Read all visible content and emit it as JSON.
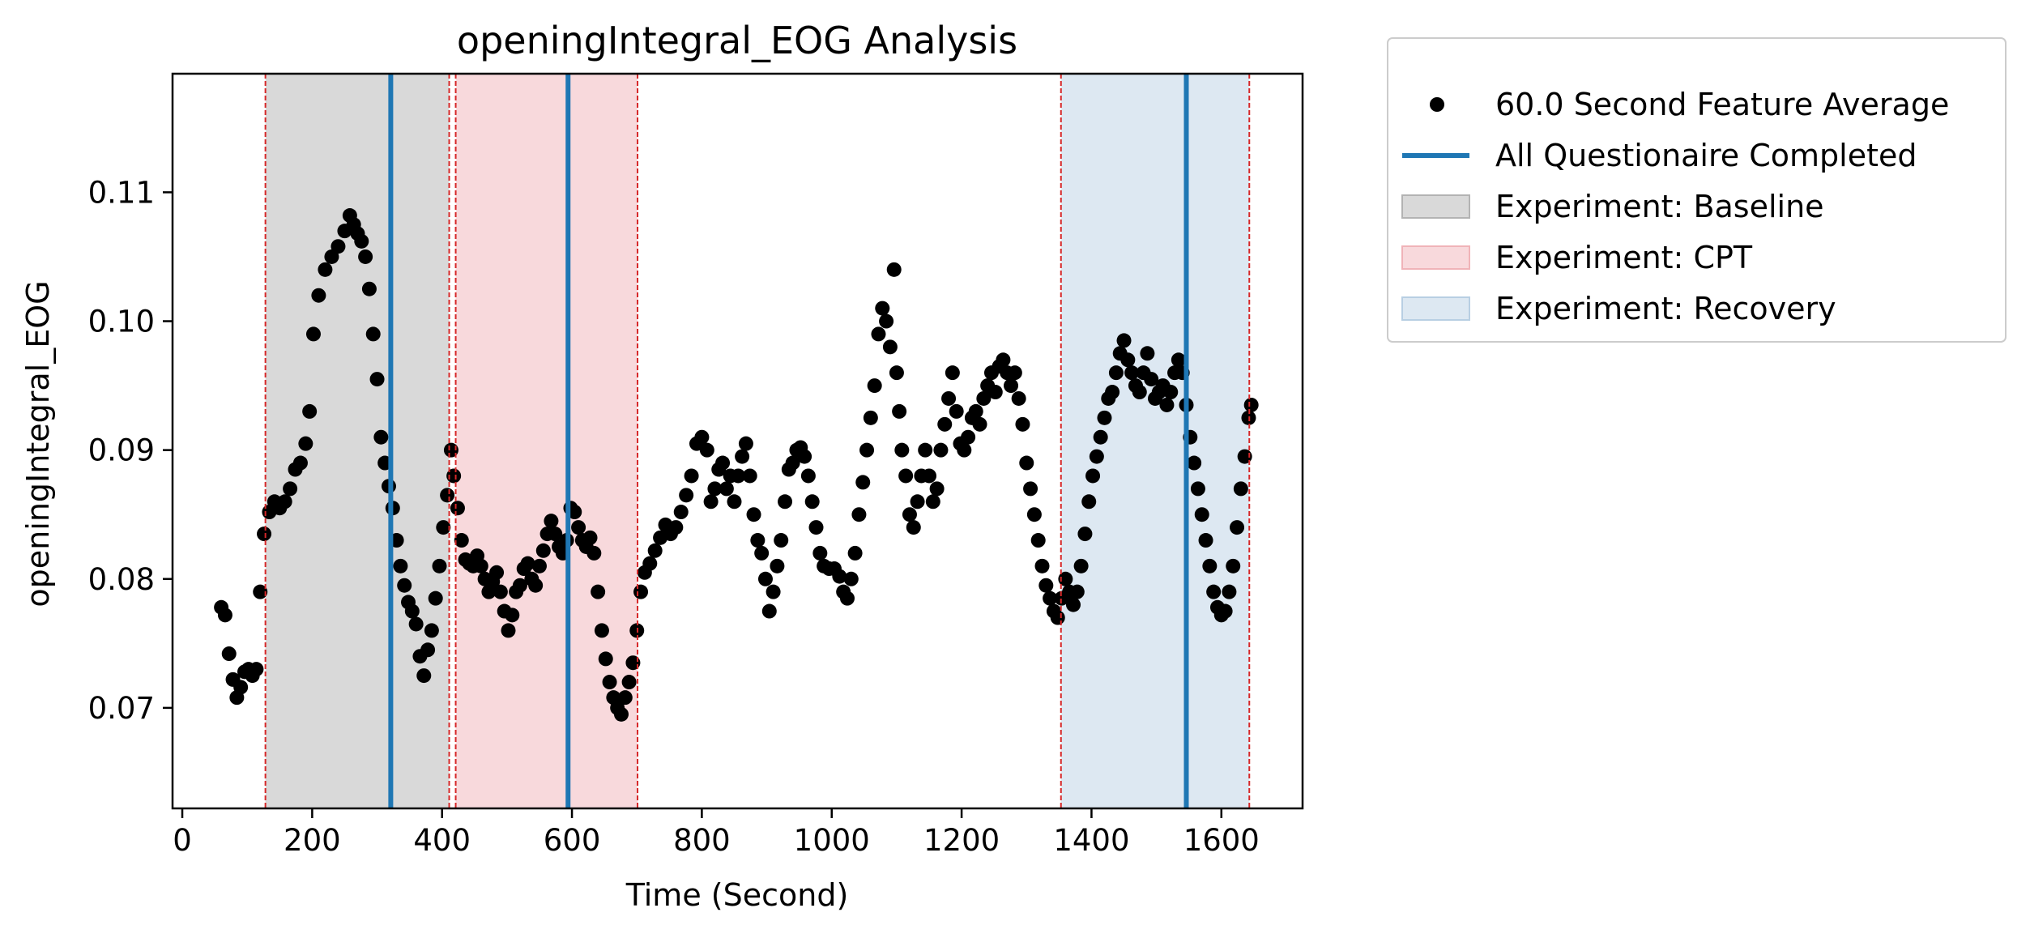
{
  "chart_data": {
    "type": "scatter",
    "title": "openingIntegral_EOG Analysis",
    "xlabel": "Time (Second)",
    "ylabel": "openingIntegral_EOG",
    "xlim": [
      -15,
      1725
    ],
    "ylim": [
      0.0622,
      0.1192
    ],
    "xticks": [
      0,
      200,
      400,
      600,
      800,
      1000,
      1200,
      1400,
      1600
    ],
    "yticks": [
      0.07,
      0.08,
      0.09,
      0.1,
      0.11
    ],
    "xtick_labels": [
      "0",
      "200",
      "400",
      "600",
      "800",
      "1000",
      "1200",
      "1400",
      "1600"
    ],
    "ytick_labels": [
      "0.07",
      "0.08",
      "0.09",
      "0.10",
      "0.11"
    ],
    "grid": false,
    "legend": {
      "placement": "outside-right-top",
      "entries": [
        {
          "label": "60.0 Second Feature Average",
          "kind": "marker",
          "color": "#000000"
        },
        {
          "label": "All Questionaire Completed",
          "kind": "line",
          "color": "#1f77b4"
        },
        {
          "label": "Experiment: Baseline",
          "kind": "patch",
          "color": "#d9d9d9",
          "edge": "#b3b3b3"
        },
        {
          "label": "Experiment: CPT",
          "kind": "patch",
          "color": "#f8d9dc",
          "edge": "#f0b3b8"
        },
        {
          "label": "Experiment: Recovery",
          "kind": "patch",
          "color": "#dde8f2",
          "edge": "#b8cfe3"
        }
      ]
    },
    "spans": [
      {
        "name": "Experiment: Baseline",
        "x0": 128,
        "x1": 411,
        "color": "#d9d9d9"
      },
      {
        "name": "Experiment: CPT",
        "x0": 421,
        "x1": 701,
        "color": "#f8d9dc"
      },
      {
        "name": "Experiment: Recovery",
        "x0": 1353,
        "x1": 1643,
        "color": "#dde8f2"
      }
    ],
    "span_boundaries": [
      128,
      411,
      421,
      701,
      1353,
      1643
    ],
    "boundary_color": "#d62728",
    "questionnaire_lines": [
      321,
      594,
      1546
    ],
    "questionnaire_color": "#1f77b4",
    "series": [
      {
        "name": "60.0 Second Feature Average",
        "color": "#000000",
        "points": [
          [
            60,
            0.0778
          ],
          [
            66,
            0.0772
          ],
          [
            72,
            0.0742
          ],
          [
            78,
            0.0722
          ],
          [
            84,
            0.0708
          ],
          [
            90,
            0.0716
          ],
          [
            96,
            0.0728
          ],
          [
            102,
            0.073
          ],
          [
            108,
            0.0725
          ],
          [
            114,
            0.073
          ],
          [
            120,
            0.079
          ],
          [
            126,
            0.0835
          ],
          [
            134,
            0.0852
          ],
          [
            142,
            0.086
          ],
          [
            150,
            0.0855
          ],
          [
            158,
            0.086
          ],
          [
            166,
            0.087
          ],
          [
            174,
            0.0885
          ],
          [
            182,
            0.089
          ],
          [
            190,
            0.0905
          ],
          [
            196,
            0.093
          ],
          [
            202,
            0.099
          ],
          [
            210,
            0.102
          ],
          [
            220,
            0.104
          ],
          [
            230,
            0.105
          ],
          [
            240,
            0.1058
          ],
          [
            250,
            0.107
          ],
          [
            258,
            0.1082
          ],
          [
            264,
            0.1075
          ],
          [
            270,
            0.1068
          ],
          [
            276,
            0.1062
          ],
          [
            282,
            0.105
          ],
          [
            288,
            0.1025
          ],
          [
            294,
            0.099
          ],
          [
            300,
            0.0955
          ],
          [
            306,
            0.091
          ],
          [
            312,
            0.089
          ],
          [
            318,
            0.0872
          ],
          [
            324,
            0.0855
          ],
          [
            330,
            0.083
          ],
          [
            336,
            0.081
          ],
          [
            342,
            0.0795
          ],
          [
            348,
            0.0782
          ],
          [
            354,
            0.0775
          ],
          [
            360,
            0.0765
          ],
          [
            366,
            0.074
          ],
          [
            372,
            0.0725
          ],
          [
            378,
            0.0745
          ],
          [
            384,
            0.076
          ],
          [
            390,
            0.0785
          ],
          [
            396,
            0.081
          ],
          [
            402,
            0.084
          ],
          [
            408,
            0.0865
          ],
          [
            414,
            0.09
          ],
          [
            418,
            0.088
          ],
          [
            424,
            0.0855
          ],
          [
            430,
            0.083
          ],
          [
            436,
            0.0815
          ],
          [
            442,
            0.0812
          ],
          [
            448,
            0.081
          ],
          [
            454,
            0.0818
          ],
          [
            460,
            0.081
          ],
          [
            466,
            0.08
          ],
          [
            472,
            0.079
          ],
          [
            478,
            0.0798
          ],
          [
            484,
            0.0805
          ],
          [
            490,
            0.079
          ],
          [
            496,
            0.0775
          ],
          [
            502,
            0.076
          ],
          [
            508,
            0.0772
          ],
          [
            514,
            0.079
          ],
          [
            520,
            0.0795
          ],
          [
            526,
            0.0808
          ],
          [
            532,
            0.0812
          ],
          [
            538,
            0.08
          ],
          [
            544,
            0.0795
          ],
          [
            550,
            0.081
          ],
          [
            556,
            0.0822
          ],
          [
            562,
            0.0835
          ],
          [
            568,
            0.0845
          ],
          [
            574,
            0.0835
          ],
          [
            580,
            0.0825
          ],
          [
            586,
            0.082
          ],
          [
            592,
            0.083
          ],
          [
            598,
            0.0855
          ],
          [
            604,
            0.0852
          ],
          [
            610,
            0.084
          ],
          [
            616,
            0.083
          ],
          [
            622,
            0.0825
          ],
          [
            628,
            0.0832
          ],
          [
            634,
            0.082
          ],
          [
            640,
            0.079
          ],
          [
            646,
            0.076
          ],
          [
            652,
            0.0738
          ],
          [
            658,
            0.072
          ],
          [
            664,
            0.0708
          ],
          [
            670,
            0.07
          ],
          [
            676,
            0.0695
          ],
          [
            682,
            0.0708
          ],
          [
            688,
            0.072
          ],
          [
            694,
            0.0735
          ],
          [
            700,
            0.076
          ],
          [
            706,
            0.079
          ],
          [
            712,
            0.0805
          ],
          [
            720,
            0.0812
          ],
          [
            728,
            0.0822
          ],
          [
            736,
            0.0832
          ],
          [
            744,
            0.0842
          ],
          [
            752,
            0.0835
          ],
          [
            760,
            0.084
          ],
          [
            768,
            0.0852
          ],
          [
            776,
            0.0865
          ],
          [
            784,
            0.088
          ],
          [
            792,
            0.0905
          ],
          [
            800,
            0.091
          ],
          [
            808,
            0.09
          ],
          [
            814,
            0.086
          ],
          [
            820,
            0.087
          ],
          [
            826,
            0.0885
          ],
          [
            832,
            0.089
          ],
          [
            838,
            0.087
          ],
          [
            844,
            0.088
          ],
          [
            850,
            0.086
          ],
          [
            856,
            0.088
          ],
          [
            862,
            0.0895
          ],
          [
            868,
            0.0905
          ],
          [
            874,
            0.088
          ],
          [
            880,
            0.085
          ],
          [
            886,
            0.083
          ],
          [
            892,
            0.082
          ],
          [
            898,
            0.08
          ],
          [
            904,
            0.0775
          ],
          [
            910,
            0.079
          ],
          [
            916,
            0.081
          ],
          [
            922,
            0.083
          ],
          [
            928,
            0.086
          ],
          [
            934,
            0.0885
          ],
          [
            940,
            0.089
          ],
          [
            946,
            0.09
          ],
          [
            952,
            0.0902
          ],
          [
            958,
            0.0895
          ],
          [
            964,
            0.088
          ],
          [
            970,
            0.086
          ],
          [
            976,
            0.084
          ],
          [
            982,
            0.082
          ],
          [
            988,
            0.081
          ],
          [
            996,
            0.0808
          ],
          [
            1004,
            0.0808
          ],
          [
            1012,
            0.0802
          ],
          [
            1018,
            0.079
          ],
          [
            1024,
            0.0785
          ],
          [
            1030,
            0.08
          ],
          [
            1036,
            0.082
          ],
          [
            1042,
            0.085
          ],
          [
            1048,
            0.0875
          ],
          [
            1054,
            0.09
          ],
          [
            1060,
            0.0925
          ],
          [
            1066,
            0.095
          ],
          [
            1072,
            0.099
          ],
          [
            1078,
            0.101
          ],
          [
            1084,
            0.1
          ],
          [
            1090,
            0.098
          ],
          [
            1096,
            0.104
          ],
          [
            1100,
            0.096
          ],
          [
            1104,
            0.093
          ],
          [
            1108,
            0.09
          ],
          [
            1114,
            0.088
          ],
          [
            1120,
            0.085
          ],
          [
            1126,
            0.084
          ],
          [
            1132,
            0.086
          ],
          [
            1138,
            0.088
          ],
          [
            1144,
            0.09
          ],
          [
            1150,
            0.088
          ],
          [
            1156,
            0.086
          ],
          [
            1162,
            0.087
          ],
          [
            1168,
            0.09
          ],
          [
            1174,
            0.092
          ],
          [
            1180,
            0.094
          ],
          [
            1186,
            0.096
          ],
          [
            1192,
            0.093
          ],
          [
            1198,
            0.0905
          ],
          [
            1204,
            0.09
          ],
          [
            1210,
            0.091
          ],
          [
            1216,
            0.0925
          ],
          [
            1222,
            0.093
          ],
          [
            1228,
            0.092
          ],
          [
            1234,
            0.094
          ],
          [
            1240,
            0.095
          ],
          [
            1246,
            0.096
          ],
          [
            1252,
            0.0945
          ],
          [
            1258,
            0.0965
          ],
          [
            1264,
            0.097
          ],
          [
            1270,
            0.096
          ],
          [
            1276,
            0.095
          ],
          [
            1282,
            0.096
          ],
          [
            1288,
            0.094
          ],
          [
            1294,
            0.092
          ],
          [
            1300,
            0.089
          ],
          [
            1306,
            0.087
          ],
          [
            1312,
            0.085
          ],
          [
            1318,
            0.083
          ],
          [
            1324,
            0.081
          ],
          [
            1330,
            0.0795
          ],
          [
            1336,
            0.0785
          ],
          [
            1342,
            0.0775
          ],
          [
            1348,
            0.077
          ],
          [
            1354,
            0.0785
          ],
          [
            1360,
            0.08
          ],
          [
            1366,
            0.079
          ],
          [
            1372,
            0.078
          ],
          [
            1378,
            0.079
          ],
          [
            1384,
            0.081
          ],
          [
            1390,
            0.0835
          ],
          [
            1396,
            0.086
          ],
          [
            1402,
            0.088
          ],
          [
            1408,
            0.0895
          ],
          [
            1414,
            0.091
          ],
          [
            1420,
            0.0925
          ],
          [
            1426,
            0.094
          ],
          [
            1432,
            0.0945
          ],
          [
            1438,
            0.096
          ],
          [
            1444,
            0.0975
          ],
          [
            1450,
            0.0985
          ],
          [
            1456,
            0.097
          ],
          [
            1462,
            0.096
          ],
          [
            1468,
            0.095
          ],
          [
            1474,
            0.0945
          ],
          [
            1480,
            0.096
          ],
          [
            1486,
            0.0975
          ],
          [
            1492,
            0.0955
          ],
          [
            1498,
            0.094
          ],
          [
            1504,
            0.0945
          ],
          [
            1510,
            0.095
          ],
          [
            1516,
            0.0935
          ],
          [
            1522,
            0.0945
          ],
          [
            1528,
            0.096
          ],
          [
            1534,
            0.097
          ],
          [
            1540,
            0.096
          ],
          [
            1546,
            0.0935
          ],
          [
            1552,
            0.091
          ],
          [
            1558,
            0.089
          ],
          [
            1564,
            0.087
          ],
          [
            1570,
            0.085
          ],
          [
            1576,
            0.083
          ],
          [
            1582,
            0.081
          ],
          [
            1588,
            0.079
          ],
          [
            1594,
            0.0778
          ],
          [
            1600,
            0.0772
          ],
          [
            1606,
            0.0775
          ],
          [
            1612,
            0.079
          ],
          [
            1618,
            0.081
          ],
          [
            1624,
            0.084
          ],
          [
            1630,
            0.087
          ],
          [
            1636,
            0.0895
          ],
          [
            1642,
            0.0925
          ],
          [
            1646,
            0.0935
          ]
        ]
      }
    ]
  }
}
